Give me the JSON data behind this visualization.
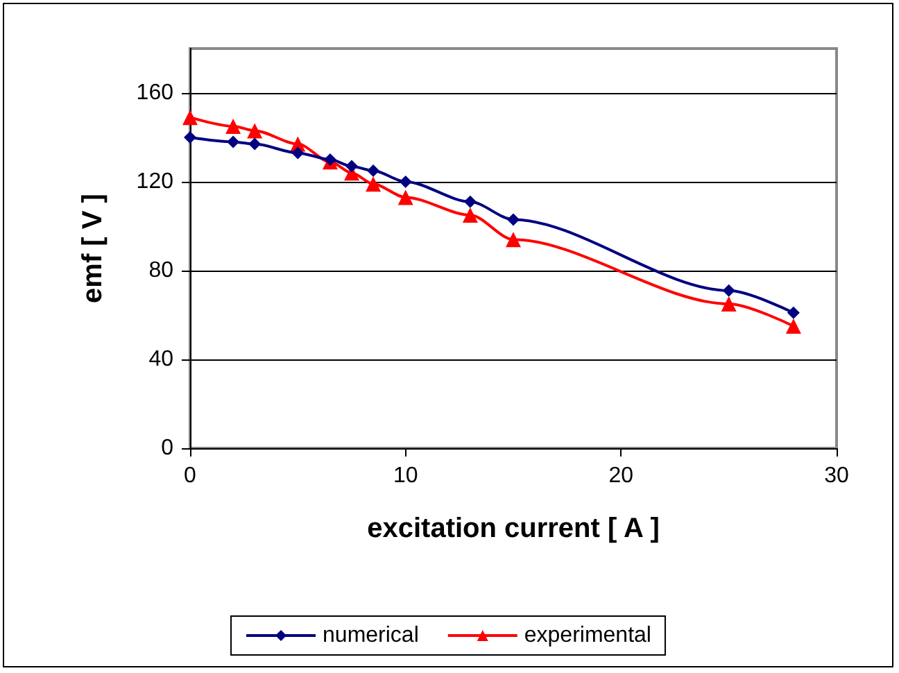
{
  "chart_data": {
    "type": "line",
    "xlabel": "excitation current [ A ]",
    "ylabel": "emf [ V ]",
    "xlim": [
      0,
      30
    ],
    "xticks": [
      0,
      10,
      20,
      30
    ],
    "ylim": [
      0,
      180
    ],
    "yticks": [
      0,
      40,
      80,
      120,
      160
    ],
    "grid": "y",
    "legend": "bottom",
    "series": [
      {
        "name": "numerical",
        "color": "#000080",
        "marker": "diamond",
        "x": [
          0,
          2,
          3,
          5,
          6.5,
          7.5,
          8.5,
          10,
          13,
          15,
          25,
          28
        ],
        "values": [
          140,
          138,
          137,
          133,
          130,
          127,
          125,
          120,
          111,
          103,
          71,
          61
        ]
      },
      {
        "name": "experimental",
        "color": "#ff0000",
        "marker": "triangle",
        "x": [
          0,
          2,
          3,
          5,
          6.5,
          7.5,
          8.5,
          10,
          13,
          15,
          25,
          28
        ],
        "values": [
          149,
          145,
          143,
          137,
          129,
          124,
          119,
          113,
          105,
          94,
          65,
          55
        ]
      }
    ]
  }
}
